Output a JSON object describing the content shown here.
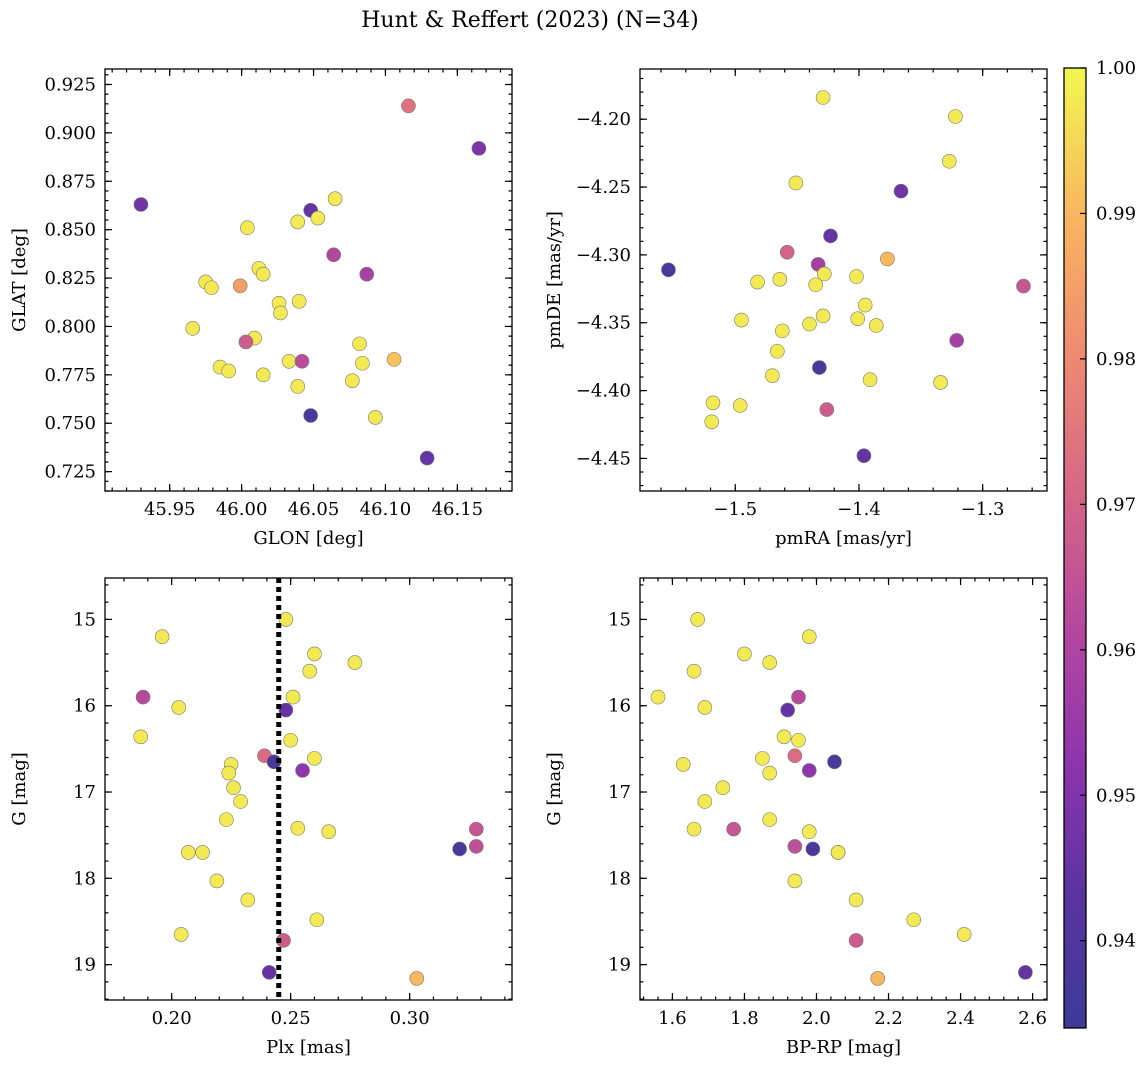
{
  "figure": {
    "title": "Hunt & Reffert (2023) (N=34)"
  },
  "chart_data": [
    {
      "type": "scatter",
      "xlabel": "GLON [deg]",
      "ylabel": "GLAT [deg]",
      "xlim": [
        45.905,
        46.188
      ],
      "ylim": [
        0.715,
        0.933
      ],
      "xticks": [
        45.95,
        46.0,
        46.05,
        46.1,
        46.15
      ],
      "xtick_labels": [
        "45.95",
        "46.00",
        "46.05",
        "46.10",
        "46.15"
      ],
      "yticks": [
        0.725,
        0.75,
        0.775,
        0.8,
        0.825,
        0.85,
        0.875,
        0.9,
        0.925
      ],
      "ytick_labels": [
        "0.725",
        "0.750",
        "0.775",
        "0.800",
        "0.825",
        "0.850",
        "0.875",
        "0.900",
        "0.925"
      ],
      "points": [
        {
          "x": 46.116,
          "y": 0.914,
          "c": 0.974
        },
        {
          "x": 46.165,
          "y": 0.892,
          "c": 0.95
        },
        {
          "x": 45.93,
          "y": 0.863,
          "c": 0.947
        },
        {
          "x": 46.065,
          "y": 0.866,
          "c": 0.998
        },
        {
          "x": 46.048,
          "y": 0.86,
          "c": 0.945
        },
        {
          "x": 46.053,
          "y": 0.856,
          "c": 0.998
        },
        {
          "x": 46.039,
          "y": 0.854,
          "c": 0.998
        },
        {
          "x": 46.004,
          "y": 0.851,
          "c": 0.998
        },
        {
          "x": 46.064,
          "y": 0.837,
          "c": 0.961
        },
        {
          "x": 46.012,
          "y": 0.83,
          "c": 0.998
        },
        {
          "x": 46.015,
          "y": 0.827,
          "c": 0.998
        },
        {
          "x": 46.087,
          "y": 0.827,
          "c": 0.958
        },
        {
          "x": 45.975,
          "y": 0.823,
          "c": 0.998
        },
        {
          "x": 45.979,
          "y": 0.82,
          "c": 0.998
        },
        {
          "x": 45.999,
          "y": 0.821,
          "c": 0.985
        },
        {
          "x": 46.04,
          "y": 0.813,
          "c": 0.998
        },
        {
          "x": 46.026,
          "y": 0.812,
          "c": 0.998
        },
        {
          "x": 46.027,
          "y": 0.807,
          "c": 0.998
        },
        {
          "x": 45.966,
          "y": 0.799,
          "c": 0.998
        },
        {
          "x": 46.009,
          "y": 0.794,
          "c": 0.998
        },
        {
          "x": 46.003,
          "y": 0.792,
          "c": 0.968
        },
        {
          "x": 46.082,
          "y": 0.791,
          "c": 0.998
        },
        {
          "x": 46.033,
          "y": 0.782,
          "c": 0.998
        },
        {
          "x": 46.042,
          "y": 0.782,
          "c": 0.963
        },
        {
          "x": 46.084,
          "y": 0.781,
          "c": 0.998
        },
        {
          "x": 46.106,
          "y": 0.783,
          "c": 0.992
        },
        {
          "x": 45.985,
          "y": 0.779,
          "c": 0.998
        },
        {
          "x": 45.991,
          "y": 0.777,
          "c": 0.998
        },
        {
          "x": 46.015,
          "y": 0.775,
          "c": 0.998
        },
        {
          "x": 46.077,
          "y": 0.772,
          "c": 0.998
        },
        {
          "x": 46.039,
          "y": 0.769,
          "c": 0.998
        },
        {
          "x": 46.048,
          "y": 0.754,
          "c": 0.938
        },
        {
          "x": 46.093,
          "y": 0.753,
          "c": 0.998
        },
        {
          "x": 46.129,
          "y": 0.732,
          "c": 0.945
        }
      ]
    },
    {
      "type": "scatter",
      "xlabel": "pmRA [mas/yr]",
      "ylabel": "pmDE [mas/yr]",
      "xlim": [
        -1.577,
        -1.248
      ],
      "ylim": [
        -4.474,
        -4.163
      ],
      "xticks": [
        -1.5,
        -1.4,
        -1.3
      ],
      "xtick_labels": [
        "−1.5",
        "−1.4",
        "−1.3"
      ],
      "yticks": [
        -4.45,
        -4.4,
        -4.35,
        -4.3,
        -4.25,
        -4.2
      ],
      "ytick_labels": [
        "−4.45",
        "−4.40",
        "−4.35",
        "−4.30",
        "−4.25",
        "−4.20"
      ],
      "points": [
        {
          "x": -1.429,
          "y": -4.184,
          "c": 0.998
        },
        {
          "x": -1.322,
          "y": -4.198,
          "c": 0.998
        },
        {
          "x": -1.327,
          "y": -4.231,
          "c": 0.998
        },
        {
          "x": -1.451,
          "y": -4.247,
          "c": 0.998
        },
        {
          "x": -1.366,
          "y": -4.253,
          "c": 0.947
        },
        {
          "x": -1.423,
          "y": -4.286,
          "c": 0.945
        },
        {
          "x": -1.458,
          "y": -4.298,
          "c": 0.97
        },
        {
          "x": -1.377,
          "y": -4.303,
          "c": 0.99
        },
        {
          "x": -1.433,
          "y": -4.307,
          "c": 0.958
        },
        {
          "x": -1.554,
          "y": -4.311,
          "c": 0.938
        },
        {
          "x": -1.402,
          "y": -4.316,
          "c": 0.998
        },
        {
          "x": -1.428,
          "y": -4.314,
          "c": 0.998
        },
        {
          "x": -1.464,
          "y": -4.318,
          "c": 0.998
        },
        {
          "x": -1.482,
          "y": -4.32,
          "c": 0.998
        },
        {
          "x": -1.435,
          "y": -4.322,
          "c": 0.998
        },
        {
          "x": -1.267,
          "y": -4.323,
          "c": 0.966
        },
        {
          "x": -1.395,
          "y": -4.337,
          "c": 0.998
        },
        {
          "x": -1.429,
          "y": -4.345,
          "c": 0.998
        },
        {
          "x": -1.401,
          "y": -4.347,
          "c": 0.998
        },
        {
          "x": -1.495,
          "y": -4.348,
          "c": 0.998
        },
        {
          "x": -1.44,
          "y": -4.351,
          "c": 0.998
        },
        {
          "x": -1.386,
          "y": -4.352,
          "c": 0.998
        },
        {
          "x": -1.462,
          "y": -4.356,
          "c": 0.998
        },
        {
          "x": -1.321,
          "y": -4.363,
          "c": 0.958
        },
        {
          "x": -1.466,
          "y": -4.371,
          "c": 0.998
        },
        {
          "x": -1.432,
          "y": -4.383,
          "c": 0.938
        },
        {
          "x": -1.47,
          "y": -4.389,
          "c": 0.998
        },
        {
          "x": -1.391,
          "y": -4.392,
          "c": 0.998
        },
        {
          "x": -1.334,
          "y": -4.394,
          "c": 0.998
        },
        {
          "x": -1.518,
          "y": -4.409,
          "c": 0.998
        },
        {
          "x": -1.496,
          "y": -4.411,
          "c": 0.998
        },
        {
          "x": -1.426,
          "y": -4.414,
          "c": 0.968
        },
        {
          "x": -1.519,
          "y": -4.423,
          "c": 0.998
        },
        {
          "x": -1.396,
          "y": -4.448,
          "c": 0.945
        }
      ]
    },
    {
      "type": "scatter",
      "xlabel": "Plx [mas]",
      "ylabel": "G [mag]",
      "xlim": [
        0.172,
        0.343
      ],
      "ylim": [
        19.41,
        14.52
      ],
      "y_inverted": true,
      "xticks": [
        0.2,
        0.25,
        0.3
      ],
      "xtick_labels": [
        "0.20",
        "0.25",
        "0.30"
      ],
      "yticks": [
        15,
        16,
        17,
        18,
        19
      ],
      "ytick_labels": [
        "15",
        "16",
        "17",
        "18",
        "19"
      ],
      "vline": {
        "x": 0.245,
        "style": "dotted",
        "color": "#000000"
      },
      "points": [
        {
          "x": 0.248,
          "y": 15.0,
          "c": 0.998
        },
        {
          "x": 0.196,
          "y": 15.2,
          "c": 0.998
        },
        {
          "x": 0.26,
          "y": 15.4,
          "c": 0.998
        },
        {
          "x": 0.277,
          "y": 15.5,
          "c": 0.998
        },
        {
          "x": 0.258,
          "y": 15.6,
          "c": 0.998
        },
        {
          "x": 0.188,
          "y": 15.9,
          "c": 0.962
        },
        {
          "x": 0.251,
          "y": 15.9,
          "c": 0.998
        },
        {
          "x": 0.203,
          "y": 16.02,
          "c": 0.998
        },
        {
          "x": 0.248,
          "y": 16.05,
          "c": 0.945
        },
        {
          "x": 0.187,
          "y": 16.36,
          "c": 0.998
        },
        {
          "x": 0.25,
          "y": 16.4,
          "c": 0.998
        },
        {
          "x": 0.239,
          "y": 16.58,
          "c": 0.972
        },
        {
          "x": 0.26,
          "y": 16.61,
          "c": 0.998
        },
        {
          "x": 0.243,
          "y": 16.65,
          "c": 0.938
        },
        {
          "x": 0.225,
          "y": 16.68,
          "c": 0.998
        },
        {
          "x": 0.255,
          "y": 16.75,
          "c": 0.953
        },
        {
          "x": 0.224,
          "y": 16.78,
          "c": 0.998
        },
        {
          "x": 0.226,
          "y": 16.95,
          "c": 0.998
        },
        {
          "x": 0.229,
          "y": 17.11,
          "c": 0.998
        },
        {
          "x": 0.223,
          "y": 17.32,
          "c": 0.998
        },
        {
          "x": 0.328,
          "y": 17.43,
          "c": 0.966
        },
        {
          "x": 0.253,
          "y": 17.42,
          "c": 0.998
        },
        {
          "x": 0.266,
          "y": 17.46,
          "c": 0.998
        },
        {
          "x": 0.328,
          "y": 17.63,
          "c": 0.964
        },
        {
          "x": 0.321,
          "y": 17.66,
          "c": 0.938
        },
        {
          "x": 0.207,
          "y": 17.7,
          "c": 0.998
        },
        {
          "x": 0.213,
          "y": 17.7,
          "c": 0.998
        },
        {
          "x": 0.219,
          "y": 18.03,
          "c": 0.998
        },
        {
          "x": 0.232,
          "y": 18.25,
          "c": 0.998
        },
        {
          "x": 0.261,
          "y": 18.48,
          "c": 0.998
        },
        {
          "x": 0.204,
          "y": 18.65,
          "c": 0.998
        },
        {
          "x": 0.247,
          "y": 18.72,
          "c": 0.968
        },
        {
          "x": 0.241,
          "y": 19.09,
          "c": 0.945
        },
        {
          "x": 0.303,
          "y": 19.16,
          "c": 0.99
        }
      ]
    },
    {
      "type": "scatter",
      "xlabel": "BP-RP [mag]",
      "ylabel": "G [mag]",
      "xlim": [
        1.51,
        2.64
      ],
      "ylim": [
        19.41,
        14.52
      ],
      "y_inverted": true,
      "xticks": [
        1.6,
        1.8,
        2.0,
        2.2,
        2.4,
        2.6
      ],
      "xtick_labels": [
        "1.6",
        "1.8",
        "2.0",
        "2.2",
        "2.4",
        "2.6"
      ],
      "yticks": [
        15,
        16,
        17,
        18,
        19
      ],
      "ytick_labels": [
        "15",
        "16",
        "17",
        "18",
        "19"
      ],
      "points": [
        {
          "x": 1.67,
          "y": 15.0,
          "c": 0.998
        },
        {
          "x": 1.98,
          "y": 15.2,
          "c": 0.998
        },
        {
          "x": 1.8,
          "y": 15.4,
          "c": 0.998
        },
        {
          "x": 1.87,
          "y": 15.5,
          "c": 0.998
        },
        {
          "x": 1.66,
          "y": 15.6,
          "c": 0.998
        },
        {
          "x": 1.56,
          "y": 15.9,
          "c": 0.998
        },
        {
          "x": 1.95,
          "y": 15.9,
          "c": 0.962
        },
        {
          "x": 1.69,
          "y": 16.02,
          "c": 0.998
        },
        {
          "x": 1.92,
          "y": 16.05,
          "c": 0.945
        },
        {
          "x": 1.91,
          "y": 16.36,
          "c": 0.998
        },
        {
          "x": 1.95,
          "y": 16.4,
          "c": 0.998
        },
        {
          "x": 1.94,
          "y": 16.58,
          "c": 0.972
        },
        {
          "x": 1.85,
          "y": 16.61,
          "c": 0.998
        },
        {
          "x": 2.05,
          "y": 16.65,
          "c": 0.938
        },
        {
          "x": 1.63,
          "y": 16.68,
          "c": 0.998
        },
        {
          "x": 1.98,
          "y": 16.75,
          "c": 0.953
        },
        {
          "x": 1.87,
          "y": 16.78,
          "c": 0.998
        },
        {
          "x": 1.74,
          "y": 16.95,
          "c": 0.998
        },
        {
          "x": 1.69,
          "y": 17.11,
          "c": 0.998
        },
        {
          "x": 1.87,
          "y": 17.32,
          "c": 0.998
        },
        {
          "x": 1.66,
          "y": 17.43,
          "c": 0.998
        },
        {
          "x": 1.77,
          "y": 17.43,
          "c": 0.966
        },
        {
          "x": 1.98,
          "y": 17.46,
          "c": 0.998
        },
        {
          "x": 1.94,
          "y": 17.63,
          "c": 0.964
        },
        {
          "x": 1.99,
          "y": 17.66,
          "c": 0.938
        },
        {
          "x": 2.06,
          "y": 17.7,
          "c": 0.998
        },
        {
          "x": 2.06,
          "y": 17.7,
          "c": 0.998
        },
        {
          "x": 1.94,
          "y": 18.03,
          "c": 0.998
        },
        {
          "x": 2.11,
          "y": 18.25,
          "c": 0.998
        },
        {
          "x": 2.27,
          "y": 18.48,
          "c": 0.998
        },
        {
          "x": 2.41,
          "y": 18.65,
          "c": 0.998
        },
        {
          "x": 2.11,
          "y": 18.72,
          "c": 0.968
        },
        {
          "x": 2.58,
          "y": 19.09,
          "c": 0.945
        },
        {
          "x": 2.17,
          "y": 19.16,
          "c": 0.99
        }
      ]
    }
  ],
  "colorbar": {
    "cmap": "plasma",
    "range": [
      0.934,
      1.0
    ],
    "ticks": [
      0.94,
      0.95,
      0.96,
      0.97,
      0.98,
      0.99,
      1.0
    ],
    "tick_labels": [
      "0.94",
      "0.95",
      "0.96",
      "0.97",
      "0.98",
      "0.99",
      "1.00"
    ]
  }
}
